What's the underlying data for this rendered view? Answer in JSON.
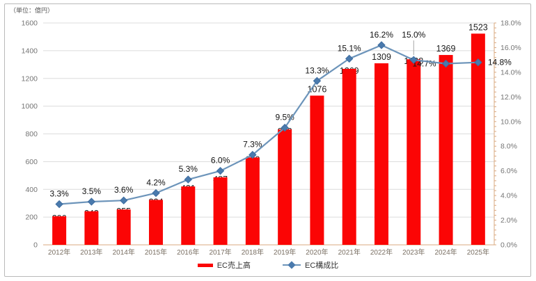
{
  "unit_label": "（単位：億円）",
  "colors": {
    "bar_red": "#fb0505",
    "line_blue": "#6c94ba",
    "marker_blue": "#4a7aad",
    "marker_edge": "#3e6da0",
    "axis_tan": "#d9a87f",
    "grid_gray": "#dcdcdc"
  },
  "chart_data": {
    "type": "bar",
    "combo": "bar+line",
    "title": "",
    "categories": [
      "2012年",
      "2013年",
      "2014年",
      "2015年",
      "2016年",
      "2017年",
      "2018年",
      "2019年",
      "2020年",
      "2021年",
      "2022年",
      "2023年",
      "2024年",
      "2025年"
    ],
    "series": [
      {
        "name": "EC売上高",
        "type": "bar",
        "axis": "left",
        "color": "#fb0505",
        "values": [
          206,
          242,
          255,
          324,
          421,
          487,
          630,
          832,
          1076,
          1269,
          1309,
          1338,
          1369,
          1523
        ],
        "value_labels": [
          "206",
          "242",
          "255",
          "324",
          "421",
          "487",
          "630",
          "832",
          "1076",
          "1269",
          "1309",
          "1338",
          "1369",
          "1523"
        ],
        "label_positions": [
          "overlap",
          "overlap",
          "overlap",
          "overlap",
          "overlap",
          "overlap",
          "overlap",
          "overlap",
          "above",
          "overlap",
          "above",
          "overlap",
          "above",
          "above"
        ]
      },
      {
        "name": "EC構成比",
        "type": "line",
        "axis": "right",
        "color": "#6c94ba",
        "marker": "diamond",
        "marker_color": "#4a7aad",
        "values": [
          3.3,
          3.5,
          3.6,
          4.2,
          5.3,
          6.0,
          7.3,
          9.5,
          13.3,
          15.1,
          16.2,
          15.0,
          14.7,
          14.8
        ],
        "value_labels": [
          "3.3%",
          "3.5%",
          "3.6%",
          "4.2%",
          "5.3%",
          "6.0%",
          "7.3%",
          "9.5%",
          "13.3%",
          "15.1%",
          "16.2%",
          "15.0%",
          "14.7%",
          "14.8%"
        ],
        "label_positions": [
          "above",
          "above",
          "above",
          "above",
          "above",
          "above",
          "above",
          "above",
          "above",
          "above",
          "above",
          "above-leader",
          "left",
          "right"
        ]
      }
    ],
    "left_axis": {
      "min": 0,
      "max": 1600,
      "step": 200,
      "ticks": [
        "0",
        "200",
        "400",
        "600",
        "800",
        "1000",
        "1200",
        "1400",
        "1600"
      ]
    },
    "right_axis": {
      "min": 0,
      "max": 18,
      "step": 2,
      "minor_step": 0.4,
      "ticks": [
        "0.0%",
        "2.0%",
        "4.0%",
        "6.0%",
        "8.0%",
        "10.0%",
        "12.0%",
        "14.0%",
        "16.0%",
        "18.0%"
      ]
    },
    "grid": "horizontal",
    "legend": {
      "position": "bottom",
      "items": [
        "EC売上高",
        "EC構成比"
      ]
    }
  }
}
